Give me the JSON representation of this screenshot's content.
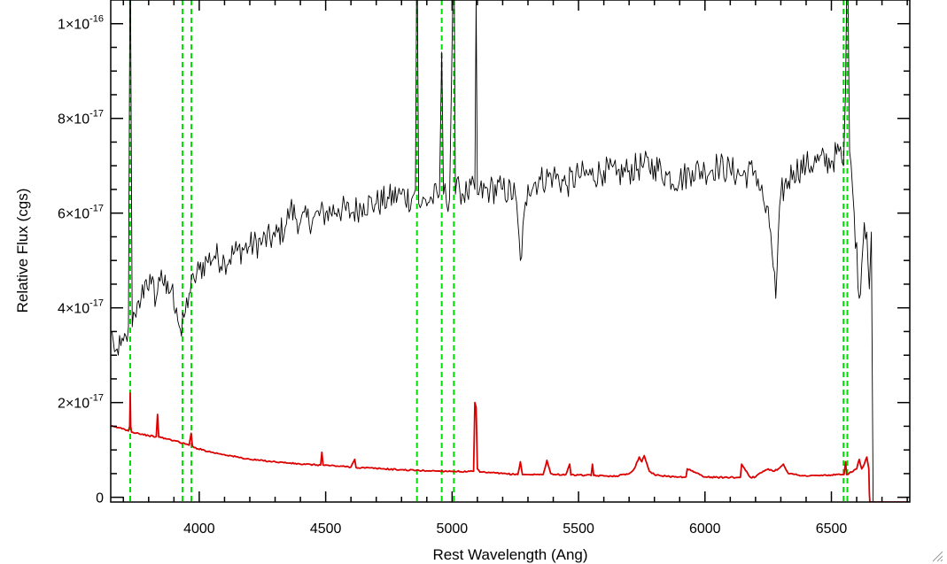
{
  "chart_data": {
    "type": "line",
    "xlabel": "Rest Wavelength (Ang)",
    "ylabel": "Relative Flux (cgs)",
    "xlim": [
      3650,
      6810
    ],
    "ylim": [
      -1e-18,
      1.05e-16
    ],
    "xticks": [
      {
        "value": 4000,
        "label": "4000"
      },
      {
        "value": 4500,
        "label": "4500"
      },
      {
        "value": 5000,
        "label": "5000"
      },
      {
        "value": 5500,
        "label": "5500"
      },
      {
        "value": 6000,
        "label": "6000"
      },
      {
        "value": 6500,
        "label": "6500"
      }
    ],
    "x_minor_step": 100,
    "yticks": [
      {
        "value": 0,
        "mantissa": "0",
        "exponent": ""
      },
      {
        "value": 2e-17,
        "mantissa": "2×10",
        "exponent": "-17"
      },
      {
        "value": 4e-17,
        "mantissa": "4×10",
        "exponent": "-17"
      },
      {
        "value": 6e-17,
        "mantissa": "6×10",
        "exponent": "-17"
      },
      {
        "value": 8e-17,
        "mantissa": "8×10",
        "exponent": "-17"
      },
      {
        "value": 1e-16,
        "mantissa": "1×10",
        "exponent": "-16"
      }
    ],
    "y_minor_step": 5e-18,
    "vlines": [
      3727,
      3934,
      3969,
      4861,
      4959,
      5007,
      6548,
      6563
    ],
    "vline_color": "#00dd00",
    "series": [
      {
        "color": "#000000",
        "x": [
          3650,
          3660,
          3670,
          3680,
          3690,
          3700,
          3710,
          3720,
          3727,
          3735,
          3750,
          3770,
          3790,
          3810,
          3830,
          3850,
          3870,
          3890,
          3910,
          3930,
          3940,
          3960,
          3980,
          4000,
          4030,
          4060,
          4100,
          4150,
          4200,
          4250,
          4300,
          4340,
          4360,
          4400,
          4450,
          4500,
          4550,
          4600,
          4650,
          4700,
          4750,
          4800,
          4840,
          4855,
          4861,
          4868,
          4880,
          4920,
          4950,
          4959,
          4966,
          4990,
          5007,
          5013,
          5030,
          5060,
          5090,
          5095,
          5100,
          5150,
          5200,
          5250,
          5270,
          5300,
          5350,
          5400,
          5450,
          5500,
          5550,
          5600,
          5650,
          5700,
          5750,
          5800,
          5850,
          5900,
          5950,
          6000,
          6050,
          6100,
          6150,
          6200,
          6230,
          6260,
          6280,
          6300,
          6350,
          6400,
          6450,
          6500,
          6530,
          6548,
          6556,
          6563,
          6572,
          6590,
          6610,
          6630,
          6640,
          6650,
          6658,
          6665,
          6680,
          6700,
          6720,
          6750,
          6780,
          6810
        ],
        "y": [
          3.5e-17,
          3.3e-17,
          3.1e-17,
          3e-17,
          3.2e-17,
          3.3e-17,
          3.4e-17,
          3.6e-17,
          1.2e-16,
          3.6e-17,
          3.8e-17,
          4.2e-17,
          4.6e-17,
          4.5e-17,
          4.2e-17,
          4.8e-17,
          4.3e-17,
          4.4e-17,
          4e-17,
          3.4e-17,
          3.8e-17,
          4.3e-17,
          4.6e-17,
          4.8e-17,
          5e-17,
          5.1e-17,
          5e-17,
          5.2e-17,
          5.3e-17,
          5.4e-17,
          5.5e-17,
          5.7e-17,
          6.1e-17,
          5.8e-17,
          5.9e-17,
          6e-17,
          6.1e-17,
          6e-17,
          6.2e-17,
          6.2e-17,
          6.3e-17,
          6.4e-17,
          6.3e-17,
          6.5e-17,
          1.2e-16,
          6.2e-17,
          6.2e-17,
          6.3e-17,
          6.4e-17,
          9.4e-17,
          6.4e-17,
          6.3e-17,
          1.2e-16,
          6.4e-17,
          6.5e-17,
          6.4e-17,
          6.5e-17,
          1.05e-16,
          6.4e-17,
          6.5e-17,
          6.5e-17,
          6.4e-17,
          5e-17,
          6.6e-17,
          6.7e-17,
          6.8e-17,
          6.6e-17,
          6.8e-17,
          6.8e-17,
          6.9e-17,
          6.8e-17,
          6.9e-17,
          7e-17,
          7e-17,
          6.8e-17,
          6.7e-17,
          6.9e-17,
          6.9e-17,
          7e-17,
          6.9e-17,
          6.8e-17,
          6.9e-17,
          6.3e-17,
          5.6e-17,
          4.2e-17,
          6.4e-17,
          6.9e-17,
          7e-17,
          7.1e-17,
          7.1e-17,
          7.3e-17,
          7e-17,
          8.6e-17,
          1.2e-16,
          7.3e-17,
          6e-17,
          4.2e-17,
          5.8e-17,
          5.6e-17,
          4.4e-17,
          5.6e-17,
          -1e-18,
          -1e-18,
          -1e-18,
          -1e-18,
          -1e-18,
          -1e-18,
          -1e-18
        ]
      },
      {
        "color": "#dd0000",
        "x": [
          3650,
          3700,
          3720,
          3725,
          3727,
          3729,
          3732,
          3760,
          3800,
          3830,
          3835,
          3840,
          3900,
          3960,
          3968,
          3973,
          3980,
          4050,
          4100,
          4200,
          4300,
          4400,
          4480,
          4485,
          4490,
          4600,
          4615,
          4620,
          4700,
          4800,
          4900,
          5000,
          5060,
          5085,
          5090,
          5095,
          5100,
          5110,
          5150,
          5200,
          5260,
          5270,
          5278,
          5300,
          5360,
          5375,
          5390,
          5400,
          5450,
          5465,
          5470,
          5500,
          5550,
          5555,
          5560,
          5600,
          5650,
          5700,
          5720,
          5740,
          5750,
          5760,
          5780,
          5800,
          5850,
          5900,
          5925,
          5930,
          6000,
          6050,
          6100,
          6140,
          6145,
          6180,
          6200,
          6230,
          6250,
          6270,
          6290,
          6310,
          6330,
          6400,
          6450,
          6500,
          6550,
          6556,
          6560,
          6600,
          6610,
          6620,
          6630,
          6640,
          6648,
          6650,
          6652,
          6655,
          6680,
          6700,
          6750,
          6810
        ],
        "y": [
          1.5e-17,
          1.45e-17,
          1.4e-17,
          1.5e-17,
          2.2e-17,
          1.5e-17,
          1.38e-17,
          1.35e-17,
          1.3e-17,
          1.28e-17,
          1.75e-17,
          1.27e-17,
          1.2e-17,
          1.1e-17,
          1.35e-17,
          1.08e-17,
          1.05e-17,
          9.5e-18,
          9e-18,
          8e-18,
          7.5e-18,
          7e-18,
          6.8e-18,
          9.5e-18,
          6.8e-18,
          6.4e-18,
          8e-18,
          6.3e-18,
          6.1e-18,
          5.8e-18,
          5.6e-18,
          5.5e-18,
          5.4e-18,
          5.5e-18,
          2e-17,
          1.9e-17,
          6e-18,
          5.3e-18,
          5.2e-18,
          5e-18,
          4.8e-18,
          7.5e-18,
          4.8e-18,
          4.8e-18,
          4.8e-18,
          7.8e-18,
          5e-18,
          4.8e-18,
          4.8e-18,
          7e-18,
          4.7e-18,
          4.7e-18,
          4.6e-18,
          7e-18,
          4.6e-18,
          4.5e-18,
          4.5e-18,
          5e-18,
          6e-18,
          8.5e-18,
          7.5e-18,
          8.8e-18,
          5.5e-18,
          4.8e-18,
          4.4e-18,
          4.3e-18,
          4.3e-18,
          6e-18,
          4.3e-18,
          4.2e-18,
          4.2e-18,
          4.2e-18,
          7e-18,
          4.2e-18,
          4.3e-18,
          5.5e-18,
          6e-18,
          5.5e-18,
          6e-18,
          7e-18,
          5e-18,
          4.5e-18,
          4.6e-18,
          4.7e-18,
          4.8e-18,
          7.5e-18,
          4.8e-18,
          6e-18,
          8e-18,
          6e-18,
          7e-18,
          8.5e-18,
          6e-18,
          1e-18,
          -1e-18,
          -1e-18,
          -1e-18,
          -1e-18,
          -1e-18,
          -1e-18
        ]
      }
    ]
  }
}
